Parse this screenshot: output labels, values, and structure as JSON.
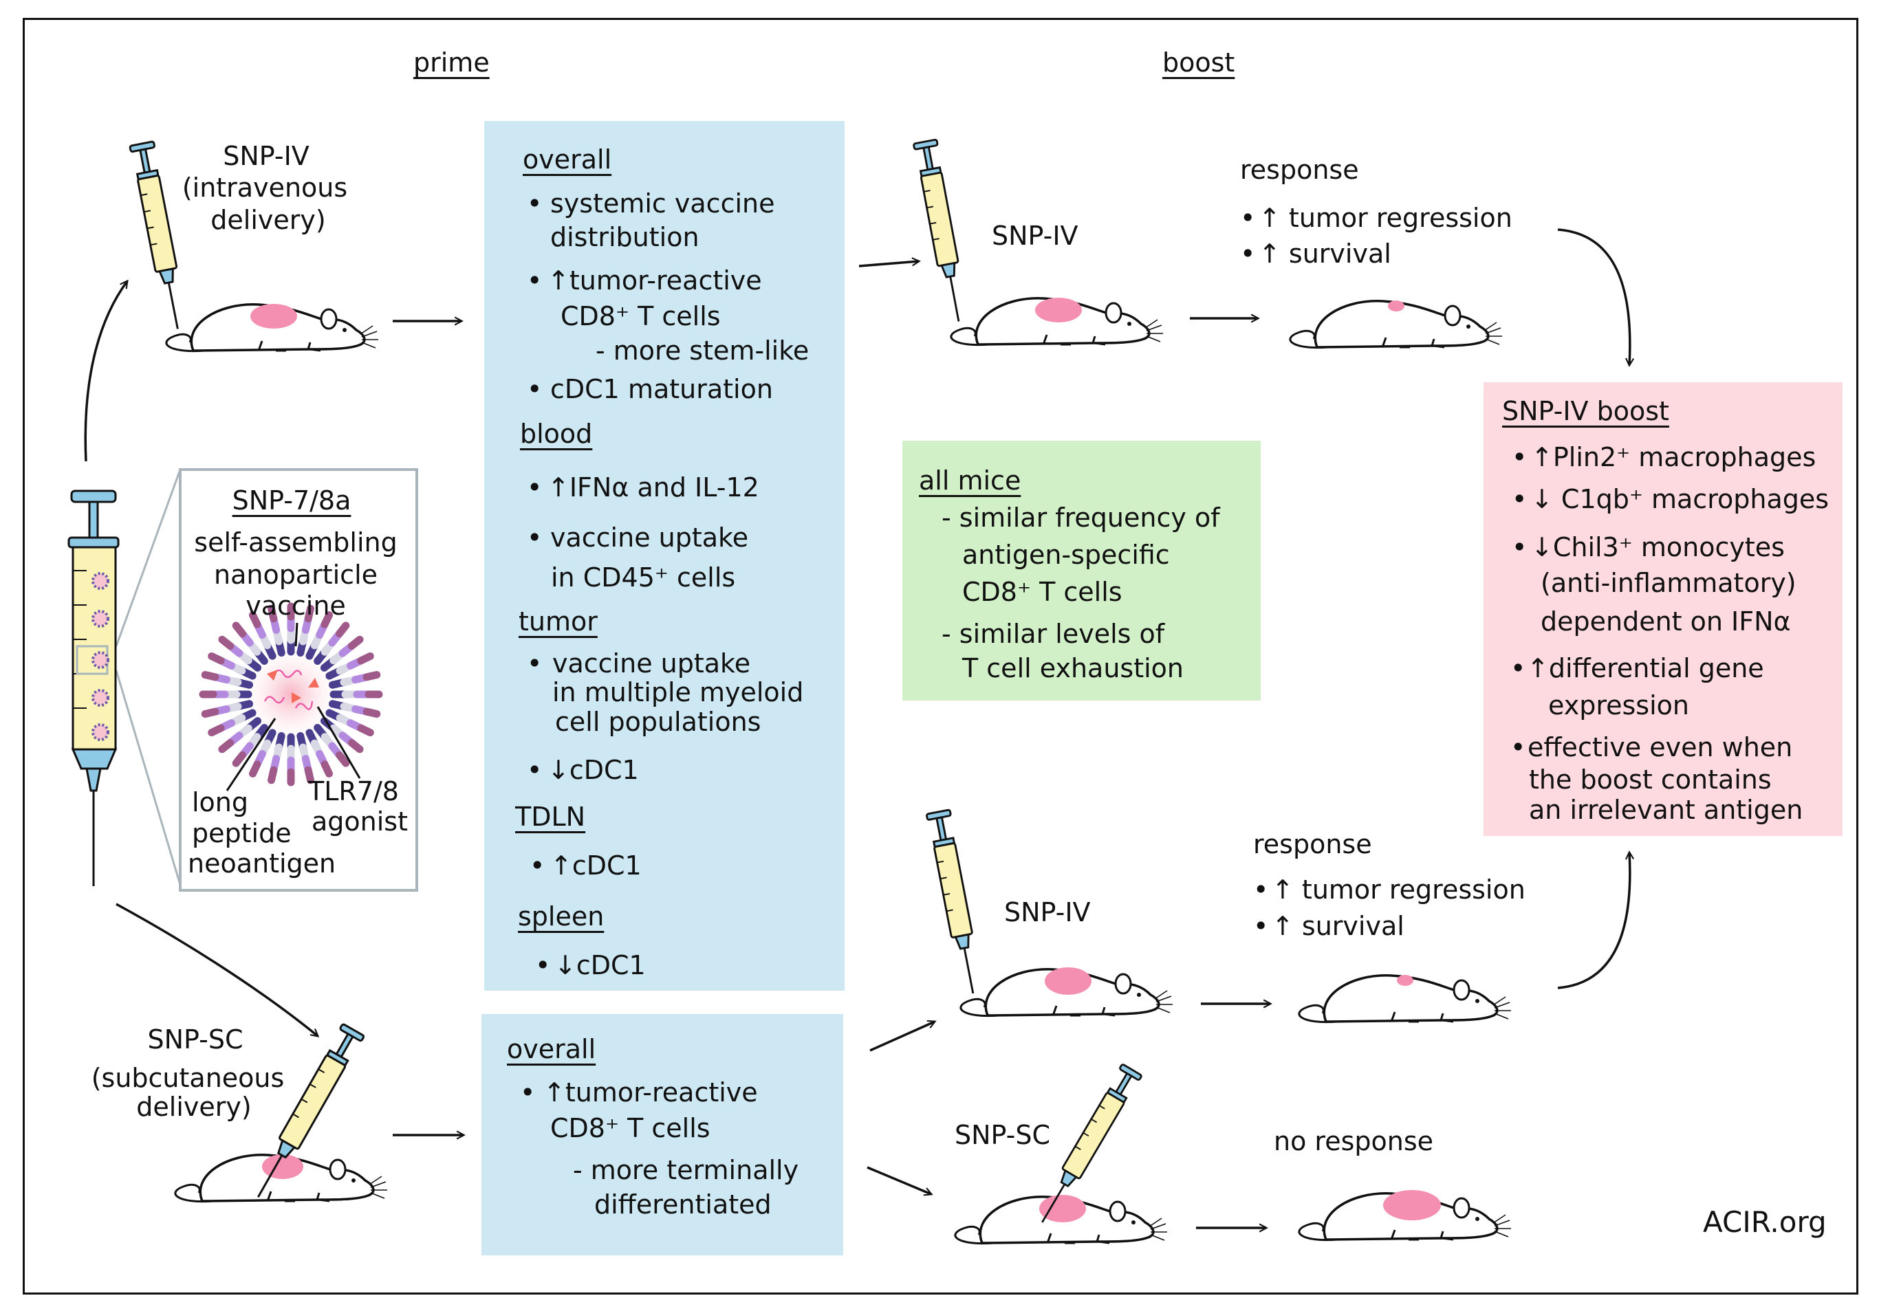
{
  "headers": {
    "prime": "prime",
    "boost": "boost"
  },
  "snp_iv_prime": {
    "name": "SNP-IV",
    "line1": "(intravenous",
    "line2": "delivery)"
  },
  "snp_sc_prime": {
    "name": "SNP-SC",
    "line1": "(subcutaneous",
    "line2": "delivery)"
  },
  "vaccine_box": {
    "title": "SNP-7/8a",
    "l1": "self-assembling",
    "l2": "nanoparticle",
    "l3": "vaccine",
    "peptide": [
      "long",
      "peptide",
      "neoantigen"
    ],
    "agonist": [
      "TLR7/8",
      "agonist"
    ]
  },
  "iv_prime_box": {
    "overall": "overall",
    "overall_items": [
      "systemic vaccine",
      "distribution",
      "↑tumor-reactive",
      "CD8⁺ T cells",
      "- more stem-like",
      "cDC1 maturation"
    ],
    "blood": "blood",
    "blood_items": [
      "↑IFNα and IL-12",
      "vaccine uptake",
      "in CD45⁺ cells"
    ],
    "tumor": "tumor",
    "tumor_items": [
      "vaccine uptake",
      "in multiple myeloid",
      "cell populations",
      "↓cDC1"
    ],
    "tdln": "TDLN",
    "tdln_items": [
      "↑cDC1"
    ],
    "spleen": "spleen",
    "spleen_items": [
      "↓cDC1"
    ]
  },
  "sc_prime_box": {
    "overall": "overall",
    "items": [
      "↑tumor-reactive",
      "CD8⁺ T cells",
      "- more terminally",
      "differentiated"
    ]
  },
  "all_mice_box": {
    "title": "all mice",
    "items": [
      "- similar frequency of",
      "antigen-specific",
      "CD8⁺ T cells",
      "- similar levels of",
      "T cell exhaustion"
    ]
  },
  "boost_labels": {
    "iv1": "SNP-IV",
    "iv2": "SNP-IV",
    "sc": "SNP-SC"
  },
  "response_top": {
    "title": "response",
    "items": [
      "↑ tumor regression",
      "↑ survival"
    ]
  },
  "response_mid": {
    "title": "response",
    "items": [
      "↑ tumor regression",
      "↑ survival"
    ]
  },
  "no_response": "no response",
  "iv_boost_box": {
    "title": "SNP-IV boost",
    "items": [
      "↑Plin2⁺ macrophages",
      "↓ C1qb⁺ macrophages",
      "↓Chil3⁺ monocytes",
      "(anti-inflammatory)",
      "dependent on IFNα",
      "↑differential gene",
      "expression",
      "effective even when",
      "the boost contains",
      "an irrelevant antigen"
    ]
  },
  "bullet": "•",
  "logo": "ACIR.org",
  "colors": {
    "blue_box": "#cde8f3",
    "green_box": "#d2f0c8",
    "pink_box": "#fdd9e0",
    "syringe_barrel": "#fbf3b5",
    "syringe_blue": "#8ec9e6",
    "tumor_patch": "#f48fb1"
  }
}
